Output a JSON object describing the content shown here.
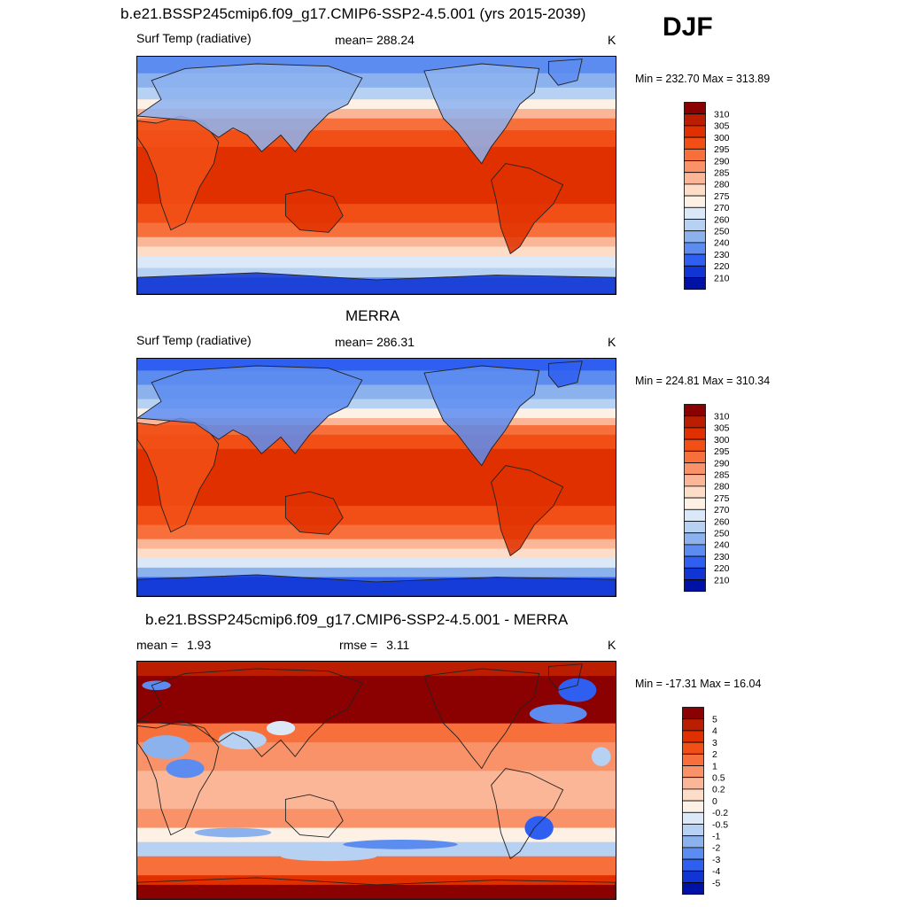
{
  "header": {
    "main_title": "b.e21.BSSP245cmip6.f09_g17.CMIP6-SSP2-4.5.001 (yrs 2015-2039)",
    "season": "DJF"
  },
  "panels": [
    {
      "title": "",
      "variable": "Surf Temp (radiative)",
      "stat_label": "mean=",
      "stat_value": "288.24",
      "stat2_label": "",
      "stat2_value": "",
      "units": "K",
      "minmax": "Min = 232.70 Max = 313.89"
    },
    {
      "title": "MERRA",
      "variable": "Surf Temp (radiative)",
      "stat_label": "mean=",
      "stat_value": "286.31",
      "stat2_label": "",
      "stat2_value": "",
      "units": "K",
      "minmax": "Min = 224.81 Max = 310.34"
    },
    {
      "title": "b.e21.BSSP245cmip6.f09_g17.CMIP6-SSP2-4.5.001 - MERRA",
      "variable": "",
      "stat_label": "mean =",
      "stat_value": "1.93",
      "stat2_label": "rmse =",
      "stat2_value": "3.11",
      "units": "K",
      "minmax": "Min = -17.31 Max =  16.04"
    }
  ],
  "colorbars": {
    "temp": {
      "labels": [
        "310",
        "305",
        "300",
        "295",
        "290",
        "285",
        "280",
        "275",
        "270",
        "260",
        "250",
        "240",
        "230",
        "220",
        "210"
      ],
      "colors": [
        "#8b0000",
        "#bb1d00",
        "#e03000",
        "#f24f16",
        "#f7703b",
        "#f99268",
        "#fbb697",
        "#fddcc8",
        "#fdf1e6",
        "#dae8f7",
        "#b7d1f2",
        "#8cb2ee",
        "#5c8cf0",
        "#2f5ff0",
        "#1035d4",
        "#0012a6"
      ]
    },
    "diff": {
      "labels": [
        "5",
        "4",
        "3",
        "2",
        "1",
        "0.5",
        "0.2",
        "0",
        "-0.2",
        "-0.5",
        "-1",
        "-2",
        "-3",
        "-4",
        "-5"
      ],
      "colors": [
        "#8b0000",
        "#bb1d00",
        "#e03000",
        "#f24f16",
        "#f7703b",
        "#f99268",
        "#fbb697",
        "#fddcc8",
        "#fdf1e6",
        "#dae8f7",
        "#b7d1f2",
        "#8cb2ee",
        "#5c8cf0",
        "#2f5ff0",
        "#1035d4",
        "#0012a6"
      ]
    }
  },
  "chart_data": [
    {
      "type": "heatmap",
      "title": "b.e21.BSSP245cmip6.f09_g17.CMIP6-SSP2-4.5.001 (yrs 2015-2039)",
      "variable": "Surf Temp (radiative)",
      "units": "K",
      "mean": 288.24,
      "min": 232.7,
      "max": 313.89,
      "contour_levels": [
        210,
        220,
        230,
        240,
        250,
        260,
        270,
        275,
        280,
        285,
        290,
        295,
        300,
        305,
        310
      ]
    },
    {
      "type": "heatmap",
      "title": "MERRA",
      "variable": "Surf Temp (radiative)",
      "units": "K",
      "mean": 286.31,
      "min": 224.81,
      "max": 310.34,
      "contour_levels": [
        210,
        220,
        230,
        240,
        250,
        260,
        270,
        275,
        280,
        285,
        290,
        295,
        300,
        305,
        310
      ]
    },
    {
      "type": "heatmap",
      "title": "b.e21.BSSP245cmip6.f09_g17.CMIP6-SSP2-4.5.001 - MERRA",
      "units": "K",
      "mean": 1.93,
      "rmse": 3.11,
      "min": -17.31,
      "max": 16.04,
      "contour_levels": [
        -5,
        -4,
        -3,
        -2,
        -1,
        -0.5,
        -0.2,
        0,
        0.2,
        0.5,
        1,
        2,
        3,
        4,
        5
      ]
    }
  ]
}
